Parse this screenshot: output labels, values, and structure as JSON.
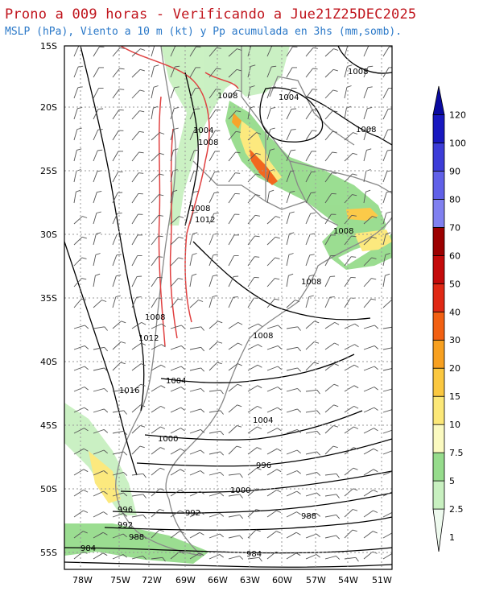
{
  "title": "Prono a 009 horas - Verificando a Jue21Z25DEC2025",
  "subtitle": "MSLP (hPa), Viento a 10 m (kt) y Pp acumulada en 3hs (mm,somb).",
  "lat_labels": [
    "15S",
    "20S",
    "25S",
    "30S",
    "35S",
    "40S",
    "45S",
    "50S",
    "55S"
  ],
  "lon_labels": [
    "78W",
    "75W",
    "72W",
    "69W",
    "66W",
    "63W",
    "60W",
    "57W",
    "54W",
    "51W"
  ],
  "isobar_labels": [
    {
      "text": "1008"
    },
    {
      "text": "1004"
    },
    {
      "text": "1008"
    },
    {
      "text": "1004"
    },
    {
      "text": "1008"
    },
    {
      "text": "1008"
    },
    {
      "text": "1012"
    },
    {
      "text": "1008"
    },
    {
      "text": "1008"
    },
    {
      "text": "1008"
    },
    {
      "text": "1012"
    },
    {
      "text": "1008"
    },
    {
      "text": "1016"
    },
    {
      "text": "1008"
    },
    {
      "text": "1004"
    },
    {
      "text": "1004"
    },
    {
      "text": "1000"
    },
    {
      "text": "996"
    },
    {
      "text": "1000"
    },
    {
      "text": "996"
    },
    {
      "text": "992"
    },
    {
      "text": "992"
    },
    {
      "text": "988"
    },
    {
      "text": "988"
    },
    {
      "text": "984"
    },
    {
      "text": "984"
    }
  ],
  "colorbar": {
    "levels": [
      "1",
      "2.5",
      "5",
      "7.5",
      "10",
      "15",
      "20",
      "30",
      "40",
      "50",
      "60",
      "70",
      "80",
      "90",
      "100",
      "120"
    ],
    "colors": [
      "#eefaee",
      "#c8f0c0",
      "#96dc8c",
      "#fbfac0",
      "#fce878",
      "#fbc840",
      "#f7a020",
      "#f26012",
      "#e02814",
      "#c40a0a",
      "#9c0000",
      "#8080f0",
      "#6060e8",
      "#3c3cd8",
      "#1818c0",
      "#0a0aa0"
    ]
  },
  "colors": {
    "title": "#c0141c",
    "subtitle": "#2a78c8",
    "isobar": "#000000",
    "border": "#888888",
    "high_terrain": "#e04040"
  }
}
